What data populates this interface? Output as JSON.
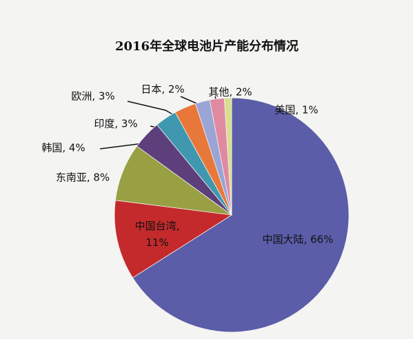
{
  "chart_data": {
    "type": "pie",
    "title": "2016年全球电池片产能分布情况",
    "values": [
      66,
      11,
      8,
      4,
      3,
      3,
      2,
      2,
      1
    ],
    "value_labels": [
      "中国大陆, 66%",
      "中国台湾, 11%",
      "东南亚, 8%",
      "韩国, 4%",
      "印度, 3%",
      "欧洲, 3%",
      "日本, 2%",
      "其他, 2%",
      "美国, 1%"
    ],
    "colors": [
      "#5b5da8",
      "#c42a2c",
      "#98a043",
      "#5d3f7c",
      "#3f98b0",
      "#e8783a",
      "#9aa5d6",
      "#e08aa2",
      "#d8df8e"
    ]
  }
}
